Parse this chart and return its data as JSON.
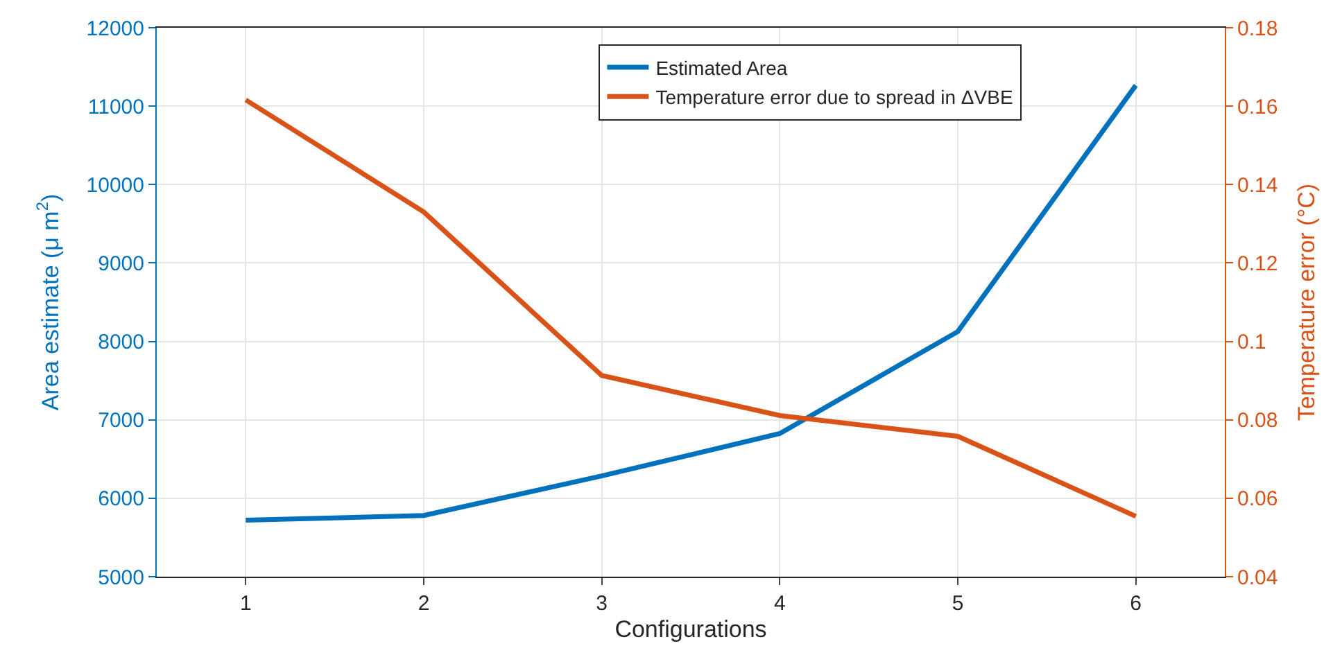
{
  "chart_data": {
    "type": "line",
    "xlabel": "Configurations",
    "ylabel": "Area estimate (μ m$^{2}$)",
    "y2label": "Temperature error (°C)",
    "x": [
      1,
      2,
      3,
      4,
      5,
      6
    ],
    "xlim": [
      0.5,
      6.5
    ],
    "xticks": [
      1,
      2,
      3,
      4,
      5,
      6
    ],
    "ylim": [
      5000,
      12000
    ],
    "yticks": [
      5000,
      6000,
      7000,
      8000,
      9000,
      10000,
      11000,
      12000
    ],
    "y2lim": [
      0.04,
      0.18
    ],
    "y2ticks": [
      0.04,
      0.06,
      0.08,
      0.1,
      0.12,
      0.14,
      0.16,
      0.18
    ],
    "grid": true,
    "legend": "top right",
    "marker": "none",
    "line_style": "solid",
    "series": [
      {
        "name": "Estimated Area",
        "color": "#0072bd",
        "values": [
          5720,
          5780,
          6285,
          6825,
          8125,
          11265
        ]
      },
      {
        "name": "Temperature error due to spread in ΔVBE",
        "color": "#d95319",
        "axis": "y2",
        "values": [
          0.1616,
          0.133,
          0.0913,
          0.0811,
          0.0758,
          0.0554
        ]
      }
    ]
  }
}
